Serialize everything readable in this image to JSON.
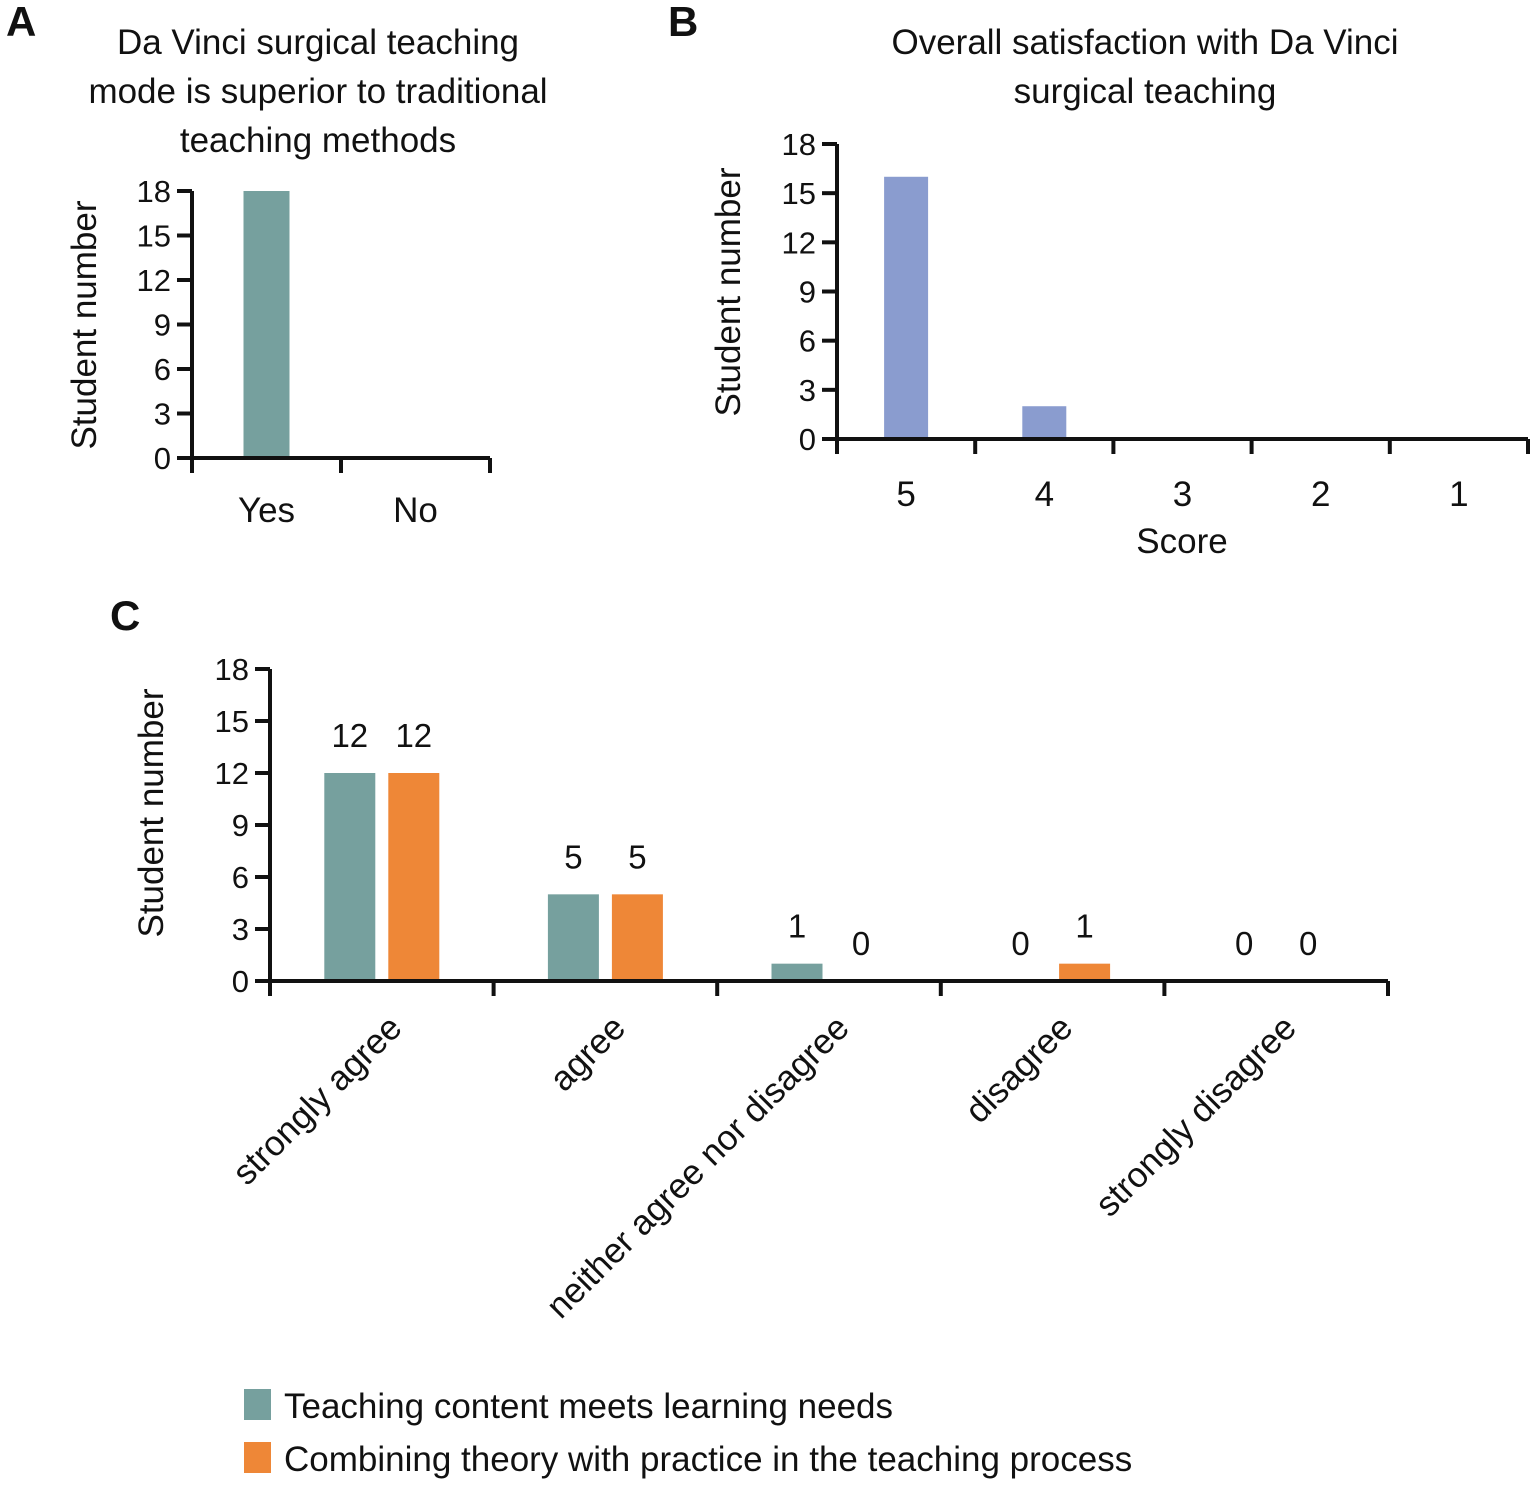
{
  "panels": {
    "A": {
      "label": "A"
    },
    "B": {
      "label": "B"
    },
    "C": {
      "label": "C"
    }
  },
  "colors": {
    "teal": "#76a09e",
    "periwinkle": "#8a9ccf",
    "orange": "#ee8737",
    "axis": "#111111"
  },
  "chart_data": [
    {
      "id": "A",
      "type": "bar",
      "title_lines": [
        "Da Vinci surgical teaching",
        "mode is superior to traditional",
        "teaching methods"
      ],
      "categories": [
        "Yes",
        "No"
      ],
      "values": [
        18,
        0
      ],
      "xlabel": "",
      "ylabel": "Student number",
      "ylim": [
        0,
        18
      ],
      "yticks": [
        0,
        3,
        6,
        9,
        12,
        15,
        18
      ],
      "grid": false
    },
    {
      "id": "B",
      "type": "bar",
      "title_lines": [
        "Overall satisfaction with Da Vinci",
        "surgical teaching"
      ],
      "categories": [
        "5",
        "4",
        "3",
        "2",
        "1"
      ],
      "values": [
        16,
        2,
        0,
        0,
        0
      ],
      "xlabel": "Score",
      "ylabel": "Student number",
      "ylim": [
        0,
        18
      ],
      "yticks": [
        0,
        3,
        6,
        9,
        12,
        15,
        18
      ],
      "grid": false
    },
    {
      "id": "C",
      "type": "bar",
      "title_lines": [],
      "categories": [
        "strongly agree",
        "agree",
        "neither agree nor disagree",
        "disagree",
        "strongly disagree"
      ],
      "series": [
        {
          "name": "Teaching content meets learning needs",
          "values": [
            12,
            5,
            1,
            0,
            0
          ]
        },
        {
          "name": "Combining theory with practice in the teaching process",
          "values": [
            12,
            5,
            0,
            1,
            0
          ]
        }
      ],
      "xlabel": "",
      "ylabel": "Student number",
      "ylim": [
        0,
        18
      ],
      "yticks": [
        0,
        3,
        6,
        9,
        12,
        15,
        18
      ],
      "grid": false,
      "legend_position": "bottom",
      "data_labels": true
    }
  ]
}
